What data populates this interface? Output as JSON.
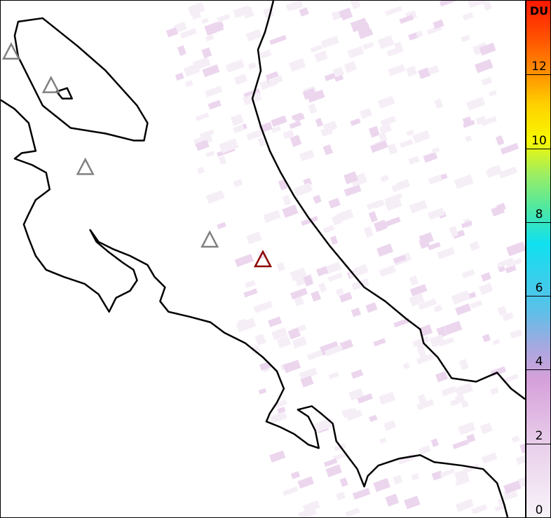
{
  "colorbar": {
    "unit": "DU",
    "min": 0,
    "max": 14,
    "ticks": [
      "0",
      "2",
      "4",
      "6",
      "8",
      "10",
      "12"
    ],
    "colors": [
      "#f8f3f9",
      "#d6a0da",
      "#5cc0e8",
      "#10e0f0",
      "#a0ee60",
      "#f8f800",
      "#ff9000",
      "#ff1800"
    ]
  },
  "markers": {
    "volcano_color": "#808080",
    "highlight_color": "#8b0000"
  }
}
